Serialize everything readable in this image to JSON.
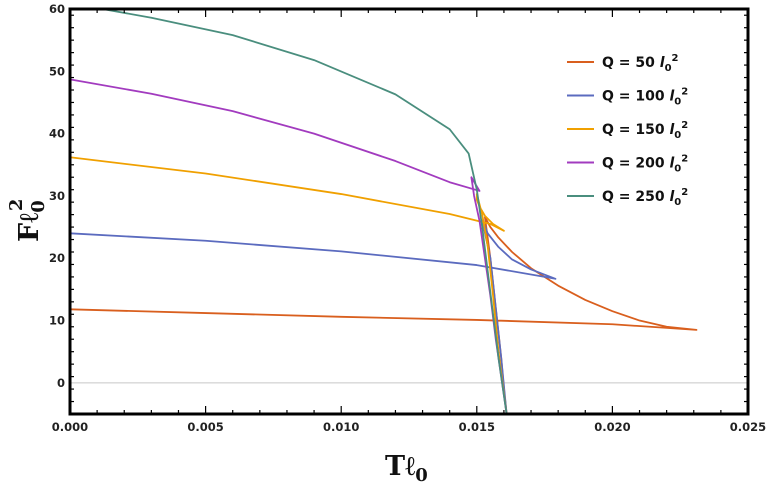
{
  "chart_data": {
    "type": "line",
    "title": "",
    "xlabel": "Tℓ",
    "xlabel_sub": "0",
    "ylabel": "Fℓ",
    "ylabel_sub": "0",
    "ylabel_sup": "2",
    "xlim": [
      0.0,
      0.025
    ],
    "ylim": [
      -5,
      60
    ],
    "x_ticks": [
      0.0,
      0.005,
      0.01,
      0.015,
      0.02,
      0.025
    ],
    "x_tick_labels": [
      "0.000",
      "0.005",
      "0.010",
      "0.015",
      "0.020",
      "0.025"
    ],
    "y_ticks": [
      0,
      10,
      20,
      30,
      40,
      50,
      60
    ],
    "y_tick_labels": [
      "0",
      "10",
      "20",
      "30",
      "40",
      "50",
      "60"
    ],
    "grid": false,
    "zero_line": true,
    "legend_position": "top-right",
    "series": [
      {
        "name": "Q = 50  l02",
        "label_main": "Q = 50  ",
        "label_l": "l",
        "label_sub": "0",
        "label_sup": "2",
        "color": "#D95F1E",
        "x": [
          0.0,
          0.005,
          0.01,
          0.015,
          0.02,
          0.0231,
          0.022,
          0.021,
          0.02,
          0.019,
          0.018,
          0.017,
          0.0163,
          0.0158,
          0.0155,
          0.0153,
          0.0155,
          0.0157,
          0.0159,
          0.016,
          0.0161
        ],
        "y": [
          11.8,
          11.2,
          10.6,
          10.1,
          9.4,
          8.5,
          9.0,
          10.0,
          11.5,
          13.3,
          15.6,
          18.4,
          21.0,
          23.3,
          25.0,
          26.6,
          20.0,
          12.0,
          4.0,
          -1.0,
          -5.0
        ]
      },
      {
        "name": "Q = 100  l02",
        "label_main": "Q = 100 ",
        "label_l": "l",
        "label_sub": "0",
        "label_sup": "2",
        "color": "#5B6BBF",
        "x": [
          0.0,
          0.005,
          0.01,
          0.015,
          0.0179,
          0.017,
          0.0163,
          0.0158,
          0.0154,
          0.0152,
          0.0155,
          0.0157,
          0.0159,
          0.0161
        ],
        "y": [
          24.0,
          22.8,
          21.1,
          18.9,
          16.7,
          18.2,
          19.8,
          21.8,
          24.0,
          26.1,
          20.0,
          12.0,
          4.0,
          -5.0
        ]
      },
      {
        "name": "Q = 150  l02",
        "label_main": "Q = 150 ",
        "label_l": "l",
        "label_sub": "0",
        "label_sup": "2",
        "color": "#F0A000",
        "x": [
          0.0,
          0.005,
          0.01,
          0.014,
          0.0155,
          0.016,
          0.0156,
          0.0153,
          0.0151,
          0.015,
          0.015,
          0.0152,
          0.0154,
          0.0156,
          0.0158,
          0.0161
        ],
        "y": [
          36.2,
          33.6,
          30.3,
          27.1,
          25.5,
          24.4,
          25.5,
          26.8,
          28.3,
          29.4,
          30.3,
          27.0,
          22.0,
          14.0,
          5.0,
          -5.0
        ]
      },
      {
        "name": "Q = 200  l02",
        "label_main": "Q = 200 ",
        "label_l": "l",
        "label_sub": "0",
        "label_sup": "2",
        "color": "#A23BBF",
        "x": [
          0.0,
          0.003,
          0.006,
          0.009,
          0.012,
          0.014,
          0.0151,
          0.0148,
          0.0149,
          0.0151,
          0.0153,
          0.0155,
          0.0157,
          0.0159,
          0.0161
        ],
        "y": [
          48.7,
          46.4,
          43.6,
          40.0,
          35.6,
          32.2,
          30.8,
          33.0,
          30.0,
          26.0,
          20.0,
          14.0,
          7.0,
          1.0,
          -5.0
        ]
      },
      {
        "name": "Q = 250  l02",
        "label_main": "Q = 250 ",
        "label_l": "l",
        "label_sub": "0",
        "label_sup": "2",
        "color": "#4A8E7E",
        "x": [
          0.0012,
          0.003,
          0.006,
          0.009,
          0.012,
          0.014,
          0.0147,
          0.015,
          0.0152,
          0.0154,
          0.0156,
          0.0158,
          0.016,
          0.0161
        ],
        "y": [
          60.0,
          58.6,
          55.8,
          51.8,
          46.3,
          40.7,
          36.8,
          31.0,
          25.0,
          18.0,
          11.0,
          4.0,
          -2.0,
          -5.0
        ]
      }
    ]
  }
}
